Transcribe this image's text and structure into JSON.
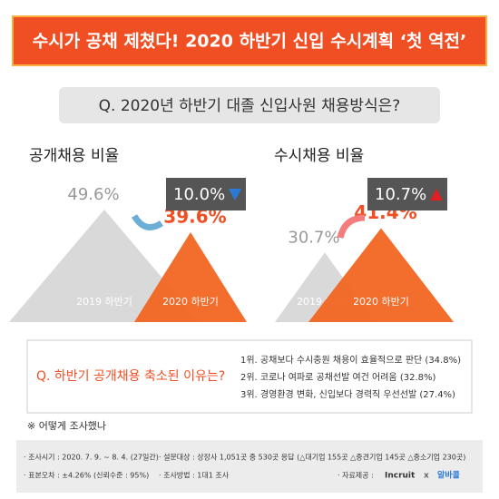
{
  "header": {
    "title": "수시가 공채 제쳤다! 2020 하반기 신입 수시계획 ‘첫 역전’"
  },
  "question": "Q. 2020년 하반기 대졸 신입사원 채용방식은?",
  "panels": [
    {
      "title": "공개채용 비율",
      "change": "10.0%",
      "direction": "down",
      "items": [
        {
          "name": "2019 하반기",
          "value": 49.6,
          "label": "49.6%",
          "color": "#d9d9d9"
        },
        {
          "name": "2020 하반기",
          "value": 39.6,
          "label": "39.6%",
          "color": "#f26522"
        }
      ]
    },
    {
      "title": "수시채용 비율",
      "change": "10.7%",
      "direction": "up",
      "items": [
        {
          "name": "2019 하반기",
          "value": 30.7,
          "label": "30.7%",
          "color": "#d9d9d9"
        },
        {
          "name": "2020 하반기",
          "value": 41.4,
          "label": "41.4%",
          "color": "#f26522"
        }
      ]
    }
  ],
  "reasons": {
    "question": "Q. 하반기 공개채용 축소된 이유는?",
    "items": [
      "1위. 공채보다 수시충원 채용이 효율적으로 판단 (34.8%)",
      "2위. 코로나 여파로 공채선발 여건 어려움 (32.8%)",
      "3위. 경영환경 변화, 신입보다 경력직 우선선발 (27.4%)"
    ]
  },
  "survey": {
    "heading": "※ 어떻게 조사했나",
    "rows": [
      "· 조사시기 : 2020. 7. 9. ~ 8. 4. (27일간)",
      "· 설문대상 : 상장사 1,051곳 중 530곳 응답 (△대기업 155곳 △중견기업 145곳 △중소기업 230곳)",
      "· 표본오차 : ±4.26% (신뢰수준 : 95%)",
      "· 조사방법 : 1대1 조사"
    ],
    "source": "· 자료제공 :",
    "brands": [
      "Incruit",
      "x",
      "알바콜"
    ]
  }
}
